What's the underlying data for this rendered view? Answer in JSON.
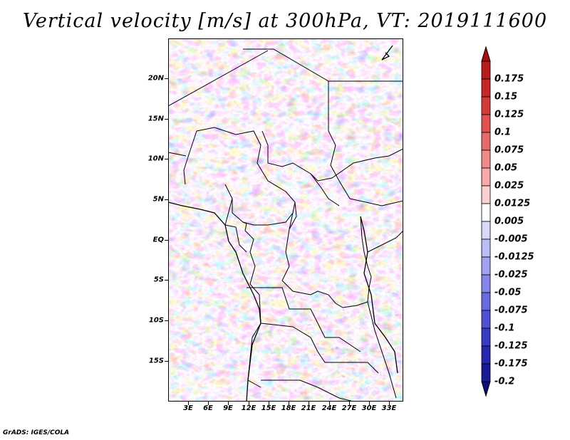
{
  "title": "Vertical velocity [m/s] at 300hPa, VT: 2019111600",
  "footer": "GrADS: IGES/COLA",
  "lat_labels": [
    "20N",
    "15N",
    "10N",
    "5N",
    "EQ",
    "5S",
    "10S",
    "15S"
  ],
  "lon_labels": [
    "3E",
    "6E",
    "9E",
    "12E",
    "15E",
    "18E",
    "21E",
    "24E",
    "27E",
    "30E",
    "33E"
  ],
  "colorbar": {
    "labels": [
      "0.175",
      "0.15",
      "0.125",
      "0.1",
      "0.075",
      "0.05",
      "0.025",
      "0.0125",
      "0.005",
      "-0.005",
      "-0.0125",
      "-0.025",
      "-0.05",
      "-0.075",
      "-0.1",
      "-0.125",
      "-0.175",
      "-0.2"
    ],
    "colors": [
      "#a50f15",
      "#b71c1c",
      "#c62828",
      "#d33a3a",
      "#e05252",
      "#e86b6b",
      "#f08b8b",
      "#f6aaaa",
      "#fbd0d0",
      "#ffffff",
      "#d8d8f8",
      "#bdbdf5",
      "#a1a1f0",
      "#8585ea",
      "#6a6ae0",
      "#5050d3",
      "#3a3ac2",
      "#2727ad",
      "#1a1a94",
      "#0d0d7a"
    ]
  }
}
